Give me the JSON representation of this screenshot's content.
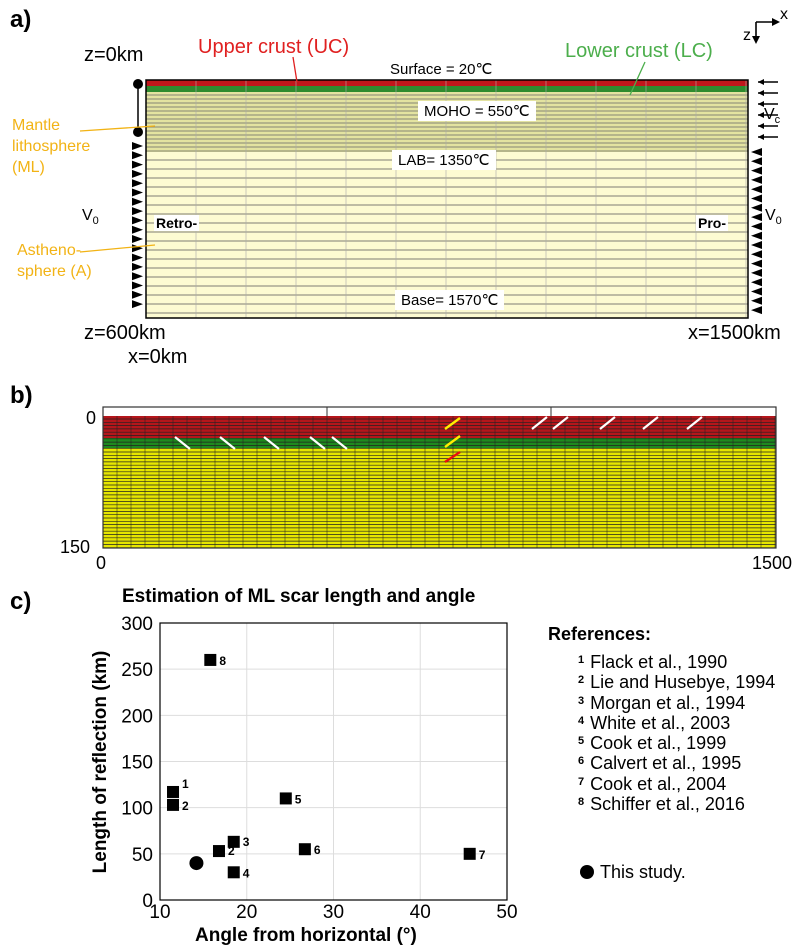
{
  "panel_a": {
    "label": "a)",
    "z0": "z=0km",
    "uc": "Upper crust (UC)",
    "lc": "Lower crust (LC)",
    "surface": "Surface = 20℃",
    "moho": "MOHO = 550℃",
    "lab": "LAB= 1350℃",
    "base": "Base= 1570℃",
    "ml_line1": "Mantle",
    "ml_line2": "lithosphere",
    "ml_line3": "(ML)",
    "a_line1": "Astheno-",
    "a_line2": "sphere (A)",
    "v0_left": "V",
    "v0_left_sub": "0",
    "v0_right": "V",
    "v0_right_sub": "0",
    "vc": "V",
    "vc_sub": "c",
    "retro": "Retro-",
    "pro": "Pro-",
    "z600": "z=600km",
    "x0": "x=0km",
    "x1500": "x=1500km",
    "axis_x": "x",
    "axis_z": "z",
    "colors": {
      "uc": "#c0161b",
      "lc": "#2e8b2e",
      "ml": "#e3e3a0",
      "a": "#fdfbd2"
    }
  },
  "panel_b": {
    "label": "b)",
    "y_top": "0",
    "y_bottom": "150",
    "x_left": "0",
    "x_right": "1500",
    "colors": {
      "uc": "#b5161b",
      "lc": "#1e8a1e",
      "mantle": "#e6e600",
      "grid": "#222222"
    }
  },
  "panel_c": {
    "label": "c)",
    "chart_data": {
      "type": "scatter",
      "title": "Estimation of ML scar length and angle",
      "xlabel": "Angle from horizontal (°)",
      "ylabel": "Length of reflection (km)",
      "xlim": [
        10,
        50
      ],
      "ylim": [
        0,
        300
      ],
      "xticks": [
        "10",
        "20",
        "30",
        "40",
        "50"
      ],
      "yticks": [
        "0",
        "50",
        "100",
        "150",
        "200",
        "250",
        "300"
      ],
      "grid": true,
      "points": [
        {
          "label": "1",
          "x": 11.5,
          "y": 117,
          "marker": "square"
        },
        {
          "label": "2",
          "x": 11.5,
          "y": 103,
          "marker": "square"
        },
        {
          "label": "3",
          "x": 18.5,
          "y": 63,
          "marker": "square"
        },
        {
          "label": "4",
          "x": 18.5,
          "y": 30,
          "marker": "square"
        },
        {
          "label": "5",
          "x": 24.5,
          "y": 110,
          "marker": "square"
        },
        {
          "label": "6",
          "x": 26.7,
          "y": 55,
          "marker": "square"
        },
        {
          "label": "7",
          "x": 45.7,
          "y": 50,
          "marker": "square"
        },
        {
          "label": "8",
          "x": 15.8,
          "y": 260,
          "marker": "square"
        },
        {
          "label": "2",
          "x": 16.8,
          "y": 53,
          "marker": "square"
        },
        {
          "label": "",
          "x": 14.2,
          "y": 40,
          "marker": "circle"
        }
      ]
    },
    "references_title": "References:",
    "references": [
      {
        "num": "1",
        "text": "Flack et al., 1990"
      },
      {
        "num": "2",
        "text": "Lie and Husebye, 1994"
      },
      {
        "num": "3",
        "text": "Morgan et al., 1994"
      },
      {
        "num": "4",
        "text": "White et al., 2003"
      },
      {
        "num": "5",
        "text": "Cook et al., 1999"
      },
      {
        "num": "6",
        "text": "Calvert et al., 1995"
      },
      {
        "num": "7",
        "text": "Cook et al., 2004"
      },
      {
        "num": "8",
        "text": "Schiffer et al., 2016"
      }
    ],
    "this_study": "This study."
  }
}
